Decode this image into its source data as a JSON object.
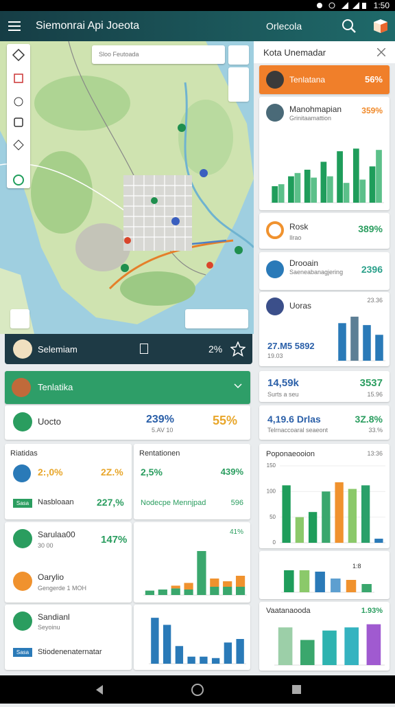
{
  "status_bar": {
    "time": "1:50"
  },
  "app_bar": {
    "title": "Siemonrai Api Joeota",
    "action": "Orlecola"
  },
  "map": {
    "search_placeholder": "Sloo Feutoada",
    "location": {
      "name": "Selemiam",
      "value": "2%"
    }
  },
  "side_panel": {
    "title": "Kota Unemadar",
    "highlight": {
      "name": "Tenlatana",
      "value": "56%"
    },
    "trend": {
      "name": "Manohmapian",
      "value": "359%",
      "subtitle": "Grinitaamattion",
      "chart": {
        "ylim": [
          0,
          100
        ],
        "stacked": false,
        "series": [
          {
            "color": "#1f9d5b",
            "values": [
              25,
              40,
              50,
              62,
              78,
              82,
              55
            ]
          },
          {
            "color": "#5cc08a",
            "values": [
              28,
              45,
              38,
              40,
              30,
              35,
              80
            ]
          }
        ]
      }
    },
    "rosk": {
      "name": "Rosk",
      "value": "389%",
      "subtitle": "Ilrao"
    },
    "drooain": {
      "name": "Drooain",
      "value": "2396",
      "subtitle": "Saeneabanagjering"
    },
    "uoras": {
      "name": "Uoras",
      "value": "23.36",
      "figure": "27.M5 5892",
      "subtitle": "19.03",
      "chart": {
        "ylim": [
          0,
          70
        ],
        "values": [
          58,
          68,
          55,
          40
        ],
        "colors": [
          "#2a7ab8",
          "#5d7f95",
          "#2a7ab8",
          "#2a7ab8"
        ]
      }
    },
    "stats_a": {
      "value": "14,59k",
      "score": "3537",
      "subtitle": "Surts a seu",
      "note": "15.96"
    },
    "stats_b": {
      "value": "4,19.6 Drlas",
      "score": "3Z.8%",
      "subtitle": "Telrnaccoaral seaeont",
      "note": "33.%"
    },
    "popon": {
      "name": "Poponaeooion",
      "value": "13:36",
      "chart": {
        "ylim": [
          0,
          150
        ],
        "yticks": [
          150,
          100,
          50,
          0
        ],
        "values": [
          112,
          50,
          60,
          100,
          118,
          105,
          112,
          8
        ],
        "colors": [
          "#1f9d5b",
          "#8bc96a",
          "#1f9d5b",
          "#3aa76d",
          "#f0922e",
          "#8bc96a",
          "#2aa06a",
          "#2a7ab8"
        ]
      }
    },
    "mini": {
      "value": "1:8",
      "chart": {
        "ylim": [
          0,
          40
        ],
        "values": [
          32,
          32,
          30,
          20,
          18,
          12
        ],
        "colors": [
          "#1f9d5b",
          "#8bc96a",
          "#2a7ab8",
          "#5d9fd0",
          "#f0922e",
          "#3aa76d"
        ]
      }
    },
    "vaatana": {
      "name": "Vaatanaooda",
      "value": "1.93%",
      "chart": {
        "ylim": [
          0,
          70
        ],
        "values": [
          60,
          40,
          55,
          60,
          65
        ],
        "colors": [
          "#9ccfa8",
          "#3aa76d",
          "#2eb3b0",
          "#35b3c0",
          "#a05ad0"
        ]
      }
    }
  },
  "summary": {
    "header": "Tenlatika",
    "uocto": {
      "name": "Uocto",
      "value": "239%",
      "subtitle": "5.AV 10",
      "score": "55%"
    },
    "riatidas": {
      "title": "Riatidas",
      "value_a": "2:,0%",
      "value_b": "2Z.%",
      "badge": "Sasa",
      "name": "Nasbloaan",
      "score": "227,%"
    },
    "rentationen": {
      "title": "Rentationen",
      "value_a": "2,5%",
      "value_b": "439%",
      "name": "Nodecpe Mennjpad",
      "score": "596"
    },
    "sarulaa": {
      "name": "Sarulaa00",
      "value": "147%",
      "subtitle": "30 00"
    },
    "oarylio": {
      "name": "Oarylio",
      "subtitle": "Gengerde 1 MOH"
    },
    "growth": {
      "value": "41%",
      "chart": {
        "ylim": [
          0,
          100
        ],
        "stacked": true,
        "series": [
          {
            "color": "#3aa76d",
            "values": [
              8,
              10,
              12,
              10,
              80,
              15,
              15,
              15
            ]
          },
          {
            "color": "#f0922e",
            "values": [
              0,
              0,
              5,
              12,
              0,
              15,
              10,
              20
            ]
          }
        ]
      }
    },
    "sandianl": {
      "name": "Sandianl",
      "subtitle": "Seyoinu",
      "badge": "Sasa",
      "note": "Stiodenenaternatar"
    },
    "blue": {
      "chart": {
        "ylim": [
          0,
          70
        ],
        "values": [
          65,
          55,
          25,
          10,
          10,
          8,
          30,
          35
        ],
        "colors": [
          "#2a7ab8",
          "#2a7ab8",
          "#2a7ab8",
          "#2a7ab8",
          "#2a7ab8",
          "#2a7ab8",
          "#2a7ab8",
          "#2a7ab8"
        ]
      }
    }
  }
}
